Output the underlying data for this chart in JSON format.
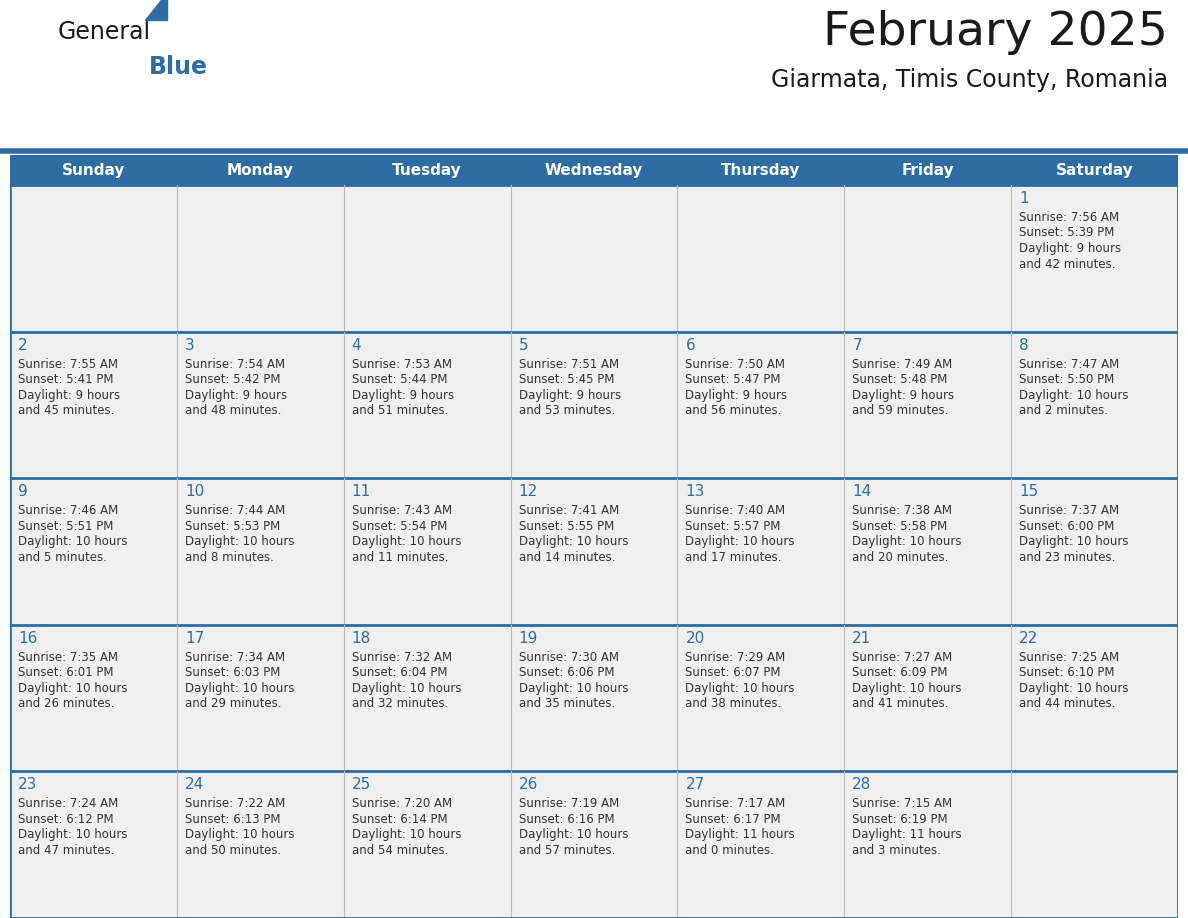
{
  "title": "February 2025",
  "subtitle": "Giarmata, Timis County, Romania",
  "header_bg": "#2E6DA4",
  "header_text_color": "#FFFFFF",
  "cell_bg": "#F0F0F0",
  "border_color": "#2E6DA4",
  "grid_line_color": "#BBBBBB",
  "day_headers": [
    "Sunday",
    "Monday",
    "Tuesday",
    "Wednesday",
    "Thursday",
    "Friday",
    "Saturday"
  ],
  "title_color": "#1A1A1A",
  "subtitle_color": "#1A1A1A",
  "day_number_color": "#2E6DA4",
  "cell_text_color": "#333333",
  "logo_general_color": "#1A1A1A",
  "logo_blue_color": "#2E6DA4",
  "logo_triangle_color": "#2E6DA4",
  "calendar_data": [
    [
      null,
      null,
      null,
      null,
      null,
      null,
      {
        "day": "1",
        "sunrise": "7:56 AM",
        "sunset": "5:39 PM",
        "daylight": "9 hours\nand 42 minutes."
      }
    ],
    [
      {
        "day": "2",
        "sunrise": "7:55 AM",
        "sunset": "5:41 PM",
        "daylight": "9 hours\nand 45 minutes."
      },
      {
        "day": "3",
        "sunrise": "7:54 AM",
        "sunset": "5:42 PM",
        "daylight": "9 hours\nand 48 minutes."
      },
      {
        "day": "4",
        "sunrise": "7:53 AM",
        "sunset": "5:44 PM",
        "daylight": "9 hours\nand 51 minutes."
      },
      {
        "day": "5",
        "sunrise": "7:51 AM",
        "sunset": "5:45 PM",
        "daylight": "9 hours\nand 53 minutes."
      },
      {
        "day": "6",
        "sunrise": "7:50 AM",
        "sunset": "5:47 PM",
        "daylight": "9 hours\nand 56 minutes."
      },
      {
        "day": "7",
        "sunrise": "7:49 AM",
        "sunset": "5:48 PM",
        "daylight": "9 hours\nand 59 minutes."
      },
      {
        "day": "8",
        "sunrise": "7:47 AM",
        "sunset": "5:50 PM",
        "daylight": "10 hours\nand 2 minutes."
      }
    ],
    [
      {
        "day": "9",
        "sunrise": "7:46 AM",
        "sunset": "5:51 PM",
        "daylight": "10 hours\nand 5 minutes."
      },
      {
        "day": "10",
        "sunrise": "7:44 AM",
        "sunset": "5:53 PM",
        "daylight": "10 hours\nand 8 minutes."
      },
      {
        "day": "11",
        "sunrise": "7:43 AM",
        "sunset": "5:54 PM",
        "daylight": "10 hours\nand 11 minutes."
      },
      {
        "day": "12",
        "sunrise": "7:41 AM",
        "sunset": "5:55 PM",
        "daylight": "10 hours\nand 14 minutes."
      },
      {
        "day": "13",
        "sunrise": "7:40 AM",
        "sunset": "5:57 PM",
        "daylight": "10 hours\nand 17 minutes."
      },
      {
        "day": "14",
        "sunrise": "7:38 AM",
        "sunset": "5:58 PM",
        "daylight": "10 hours\nand 20 minutes."
      },
      {
        "day": "15",
        "sunrise": "7:37 AM",
        "sunset": "6:00 PM",
        "daylight": "10 hours\nand 23 minutes."
      }
    ],
    [
      {
        "day": "16",
        "sunrise": "7:35 AM",
        "sunset": "6:01 PM",
        "daylight": "10 hours\nand 26 minutes."
      },
      {
        "day": "17",
        "sunrise": "7:34 AM",
        "sunset": "6:03 PM",
        "daylight": "10 hours\nand 29 minutes."
      },
      {
        "day": "18",
        "sunrise": "7:32 AM",
        "sunset": "6:04 PM",
        "daylight": "10 hours\nand 32 minutes."
      },
      {
        "day": "19",
        "sunrise": "7:30 AM",
        "sunset": "6:06 PM",
        "daylight": "10 hours\nand 35 minutes."
      },
      {
        "day": "20",
        "sunrise": "7:29 AM",
        "sunset": "6:07 PM",
        "daylight": "10 hours\nand 38 minutes."
      },
      {
        "day": "21",
        "sunrise": "7:27 AM",
        "sunset": "6:09 PM",
        "daylight": "10 hours\nand 41 minutes."
      },
      {
        "day": "22",
        "sunrise": "7:25 AM",
        "sunset": "6:10 PM",
        "daylight": "10 hours\nand 44 minutes."
      }
    ],
    [
      {
        "day": "23",
        "sunrise": "7:24 AM",
        "sunset": "6:12 PM",
        "daylight": "10 hours\nand 47 minutes."
      },
      {
        "day": "24",
        "sunrise": "7:22 AM",
        "sunset": "6:13 PM",
        "daylight": "10 hours\nand 50 minutes."
      },
      {
        "day": "25",
        "sunrise": "7:20 AM",
        "sunset": "6:14 PM",
        "daylight": "10 hours\nand 54 minutes."
      },
      {
        "day": "26",
        "sunrise": "7:19 AM",
        "sunset": "6:16 PM",
        "daylight": "10 hours\nand 57 minutes."
      },
      {
        "day": "27",
        "sunrise": "7:17 AM",
        "sunset": "6:17 PM",
        "daylight": "11 hours\nand 0 minutes."
      },
      {
        "day": "28",
        "sunrise": "7:15 AM",
        "sunset": "6:19 PM",
        "daylight": "11 hours\nand 3 minutes."
      },
      null
    ]
  ]
}
